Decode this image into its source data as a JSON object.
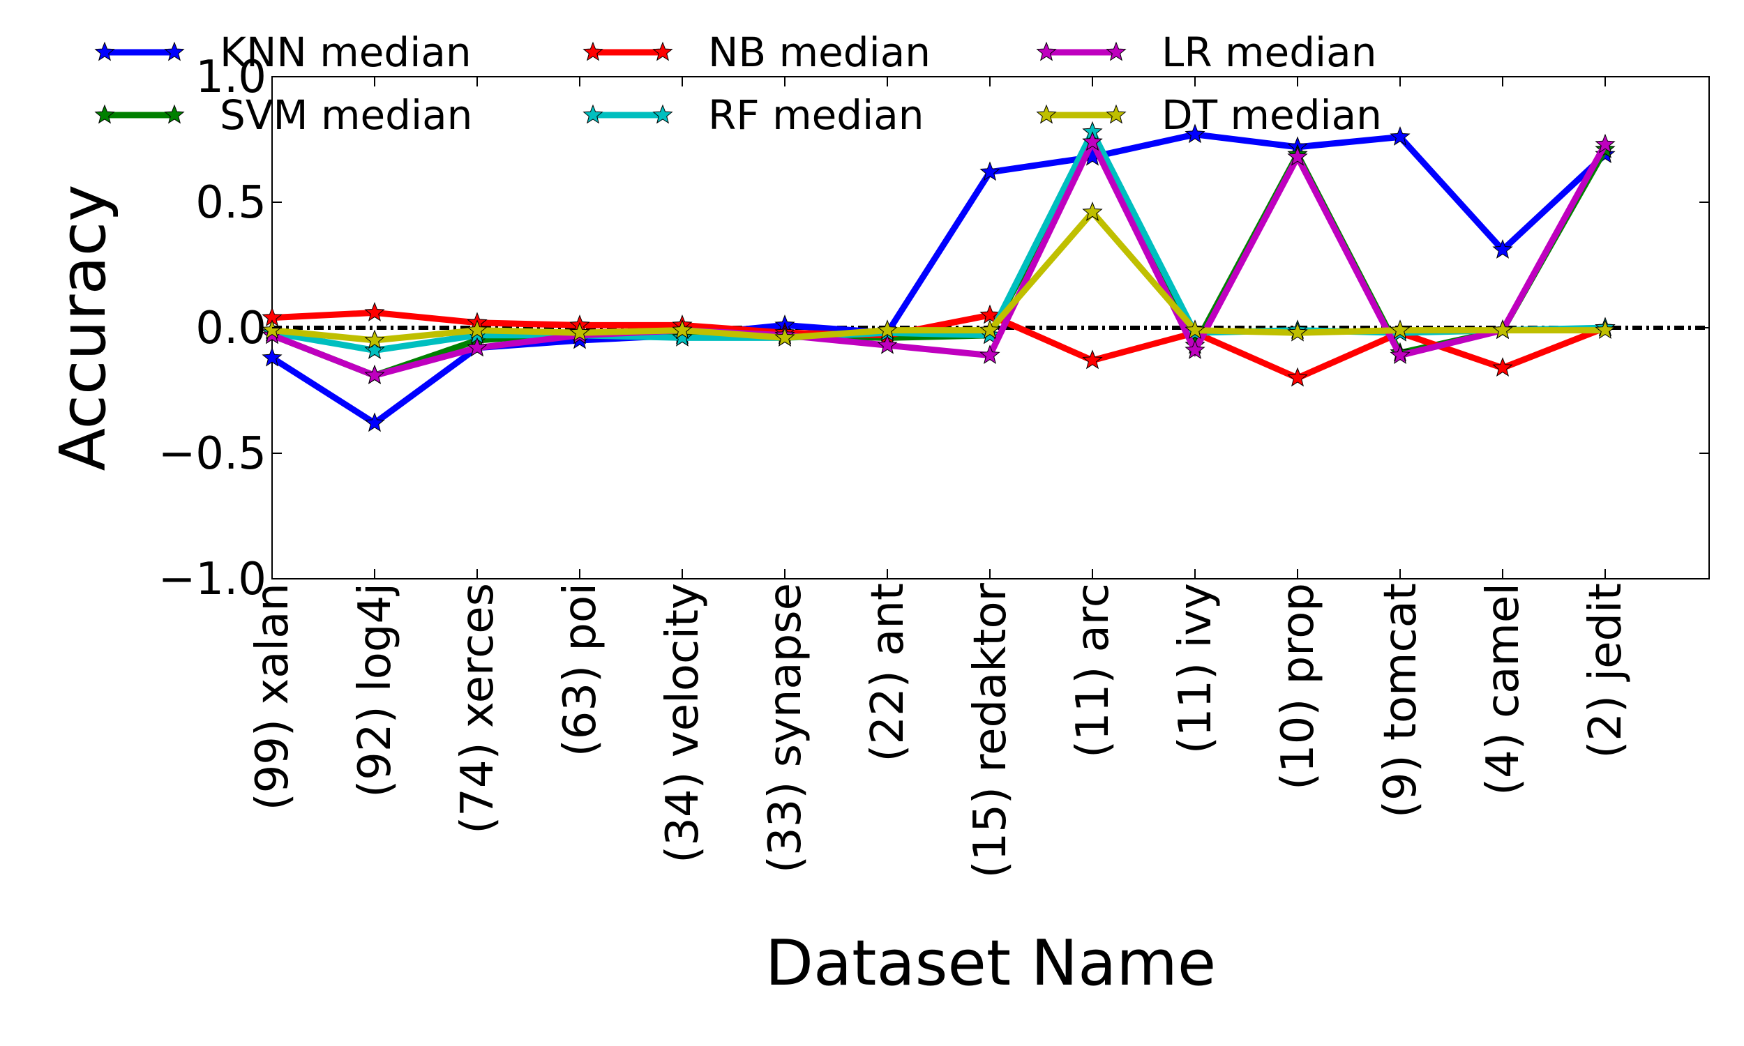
{
  "chart_data": {
    "type": "line",
    "xlabel": "Dataset Name",
    "ylabel": "Accuracy",
    "ylim": [
      -1.0,
      1.0
    ],
    "y_ticks": [
      "1.0",
      "0.5",
      "0.0",
      "−0.5",
      "−1.0"
    ],
    "y_tick_values": [
      1.0,
      0.5,
      0.0,
      -0.5,
      -1.0
    ],
    "categories": [
      "(99) xalan",
      "(92) log4j",
      "(74) xerces",
      "(63) poi",
      "(34) velocity",
      "(33) synapse",
      "(22) ant",
      "(15) redaktor",
      "(11) arc",
      "(11) ivy",
      "(10) prop",
      "(9) tomcat",
      "(4) camel",
      "(2) jedit"
    ],
    "reference_line": {
      "y": 0.0,
      "style": "dash-dot",
      "color": "#000000"
    },
    "legend_position": "top",
    "grid": false,
    "series": [
      {
        "name": "KNN median",
        "color": "#0000ff",
        "values": [
          -0.12,
          -0.38,
          -0.08,
          -0.05,
          -0.03,
          0.01,
          -0.02,
          0.62,
          0.68,
          0.77,
          0.72,
          0.76,
          0.31,
          0.69
        ]
      },
      {
        "name": "SVM median",
        "color": "#008000",
        "values": [
          -0.03,
          -0.19,
          -0.05,
          -0.02,
          -0.02,
          -0.03,
          -0.04,
          -0.03,
          0.74,
          -0.07,
          0.69,
          -0.1,
          -0.01,
          0.71
        ]
      },
      {
        "name": "NB median",
        "color": "#ff0000",
        "values": [
          0.04,
          0.06,
          0.02,
          0.01,
          0.01,
          -0.02,
          -0.03,
          0.05,
          -0.13,
          -0.02,
          -0.2,
          -0.02,
          -0.16,
          0.0
        ]
      },
      {
        "name": "RF median",
        "color": "#00bfbf",
        "values": [
          -0.02,
          -0.09,
          -0.03,
          -0.03,
          -0.04,
          -0.04,
          -0.02,
          -0.03,
          0.78,
          -0.02,
          -0.01,
          -0.02,
          -0.01,
          0.0
        ]
      },
      {
        "name": "LR median",
        "color": "#bf00bf",
        "values": [
          -0.03,
          -0.19,
          -0.08,
          -0.03,
          -0.01,
          -0.03,
          -0.07,
          -0.11,
          0.74,
          -0.09,
          0.68,
          -0.11,
          -0.01,
          0.73
        ]
      },
      {
        "name": "DT median",
        "color": "#bfbf00",
        "values": [
          -0.01,
          -0.05,
          -0.01,
          -0.02,
          -0.01,
          -0.04,
          -0.01,
          -0.01,
          0.46,
          -0.01,
          -0.02,
          -0.01,
          -0.01,
          -0.01
        ]
      }
    ]
  }
}
